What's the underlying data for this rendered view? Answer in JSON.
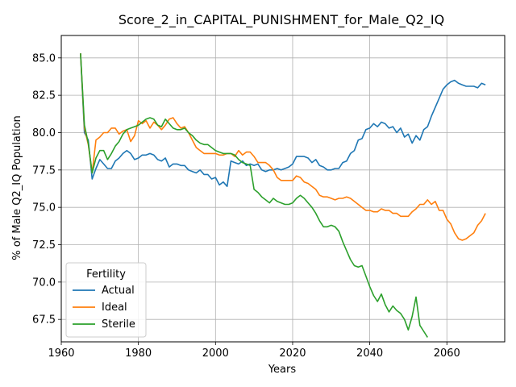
{
  "chart_data": {
    "type": "line",
    "title": "Score_2_in_CAPITAL_PUNISHMENT_for_Male_Q2_IQ",
    "xlabel": "Years",
    "ylabel": "% of Male Q2_IQ Population",
    "xlim": [
      1960,
      2075
    ],
    "ylim": [
      66.0,
      86.5
    ],
    "xticks": [
      1960,
      1980,
      2000,
      2020,
      2040,
      2060
    ],
    "xtick_labels": [
      "1960",
      "1980",
      "2000",
      "2020",
      "2040",
      "2060"
    ],
    "yticks": [
      67.5,
      70.0,
      72.5,
      75.0,
      77.5,
      80.0,
      82.5,
      85.0
    ],
    "ytick_labels": [
      "67.5",
      "70.0",
      "72.5",
      "75.0",
      "77.5",
      "80.0",
      "82.5",
      "85.0"
    ],
    "grid": true,
    "legend": {
      "title": "Fertility",
      "placement": "lower-left"
    },
    "series": [
      {
        "name": "Actual",
        "color": "#1f77b4",
        "x": [
          1965,
          1966,
          1967,
          1968,
          1969,
          1970,
          1971,
          1972,
          1973,
          1974,
          1975,
          1976,
          1977,
          1978,
          1979,
          1980,
          1981,
          1982,
          1983,
          1984,
          1985,
          1986,
          1987,
          1988,
          1989,
          1990,
          1991,
          1992,
          1993,
          1994,
          1995,
          1996,
          1997,
          1998,
          1999,
          2000,
          2001,
          2002,
          2003,
          2004,
          2005,
          2006,
          2007,
          2008,
          2009,
          2010,
          2011,
          2012,
          2013,
          2014,
          2015,
          2016,
          2017,
          2018,
          2019,
          2020,
          2021,
          2022,
          2023,
          2024,
          2025,
          2026,
          2027,
          2028,
          2029,
          2030,
          2031,
          2032,
          2033,
          2034,
          2035,
          2036,
          2037,
          2038,
          2039,
          2040,
          2041,
          2042,
          2043,
          2044,
          2045,
          2046,
          2047,
          2048,
          2049,
          2050,
          2051,
          2052,
          2053,
          2054,
          2055,
          2056,
          2057,
          2058,
          2059,
          2060,
          2061,
          2062,
          2063,
          2064,
          2065,
          2066,
          2067,
          2068,
          2069,
          2070
        ],
        "y": [
          85.3,
          80.0,
          79.5,
          76.9,
          77.6,
          78.2,
          77.9,
          77.6,
          77.6,
          78.1,
          78.3,
          78.6,
          78.8,
          78.6,
          78.2,
          78.3,
          78.5,
          78.5,
          78.6,
          78.5,
          78.2,
          78.1,
          78.3,
          77.7,
          77.9,
          77.9,
          77.8,
          77.8,
          77.5,
          77.4,
          77.3,
          77.5,
          77.2,
          77.2,
          76.9,
          77.0,
          76.5,
          76.7,
          76.4,
          78.1,
          78.0,
          77.9,
          78.1,
          77.8,
          77.9,
          77.8,
          77.9,
          77.5,
          77.4,
          77.5,
          77.5,
          77.6,
          77.5,
          77.6,
          77.7,
          77.9,
          78.4,
          78.4,
          78.4,
          78.3,
          78.0,
          78.2,
          77.8,
          77.7,
          77.5,
          77.5,
          77.6,
          77.6,
          78.0,
          78.1,
          78.6,
          78.8,
          79.5,
          79.6,
          80.2,
          80.3,
          80.6,
          80.4,
          80.7,
          80.6,
          80.3,
          80.4,
          80.0,
          80.3,
          79.7,
          79.9,
          79.3,
          79.8,
          79.5,
          80.2,
          80.4,
          81.1,
          81.7,
          82.3,
          82.9,
          83.2,
          83.4,
          83.5,
          83.3,
          83.2,
          83.1,
          83.1,
          83.1,
          83.0,
          83.3,
          83.2
        ]
      },
      {
        "name": "Ideal",
        "color": "#ff7f0e",
        "x": [
          1965,
          1966,
          1967,
          1968,
          1969,
          1970,
          1971,
          1972,
          1973,
          1974,
          1975,
          1976,
          1977,
          1978,
          1979,
          1980,
          1981,
          1982,
          1983,
          1984,
          1985,
          1986,
          1987,
          1988,
          1989,
          1990,
          1991,
          1992,
          1993,
          1994,
          1995,
          1996,
          1997,
          1998,
          1999,
          2000,
          2001,
          2002,
          2003,
          2004,
          2005,
          2006,
          2007,
          2008,
          2009,
          2010,
          2011,
          2012,
          2013,
          2014,
          2015,
          2016,
          2017,
          2018,
          2019,
          2020,
          2021,
          2022,
          2023,
          2024,
          2025,
          2026,
          2027,
          2028,
          2029,
          2030,
          2031,
          2032,
          2033,
          2034,
          2035,
          2036,
          2037,
          2038,
          2039,
          2040,
          2041,
          2042,
          2043,
          2044,
          2045,
          2046,
          2047,
          2048,
          2049,
          2050,
          2051,
          2052,
          2053,
          2054,
          2055,
          2056,
          2057,
          2058,
          2059,
          2060,
          2061,
          2062,
          2063,
          2064,
          2065,
          2066,
          2067,
          2068,
          2069,
          2070
        ],
        "y": [
          85.3,
          80.3,
          79.2,
          77.3,
          79.5,
          79.7,
          80.0,
          80.0,
          80.3,
          80.3,
          79.9,
          80.1,
          80.2,
          79.4,
          79.8,
          80.8,
          80.6,
          80.8,
          80.3,
          80.7,
          80.5,
          80.2,
          80.5,
          80.9,
          81.0,
          80.6,
          80.3,
          80.4,
          80.0,
          79.5,
          79.0,
          78.8,
          78.6,
          78.6,
          78.6,
          78.6,
          78.5,
          78.5,
          78.6,
          78.6,
          78.4,
          78.8,
          78.5,
          78.7,
          78.7,
          78.4,
          78.0,
          78.0,
          78.0,
          77.8,
          77.5,
          77.0,
          76.8,
          76.8,
          76.8,
          76.8,
          77.1,
          77.0,
          76.7,
          76.6,
          76.4,
          76.2,
          75.8,
          75.7,
          75.7,
          75.6,
          75.5,
          75.6,
          75.6,
          75.7,
          75.6,
          75.4,
          75.2,
          75.0,
          74.8,
          74.8,
          74.7,
          74.7,
          74.9,
          74.8,
          74.8,
          74.6,
          74.6,
          74.4,
          74.4,
          74.4,
          74.7,
          74.9,
          75.2,
          75.2,
          75.5,
          75.2,
          75.4,
          74.8,
          74.8,
          74.2,
          73.9,
          73.3,
          72.9,
          72.8,
          72.9,
          73.1,
          73.3,
          73.8,
          74.1,
          74.6
        ]
      },
      {
        "name": "Sterile",
        "color": "#2ca02c",
        "x": [
          1965,
          1966,
          1967,
          1968,
          1969,
          1970,
          1971,
          1972,
          1973,
          1974,
          1975,
          1976,
          1977,
          1978,
          1979,
          1980,
          1981,
          1982,
          1983,
          1984,
          1985,
          1986,
          1987,
          1988,
          1989,
          1990,
          1991,
          1992,
          1993,
          1994,
          1995,
          1996,
          1997,
          1998,
          1999,
          2000,
          2001,
          2002,
          2003,
          2004,
          2005,
          2006,
          2007,
          2008,
          2009,
          2010,
          2011,
          2012,
          2013,
          2014,
          2015,
          2016,
          2017,
          2018,
          2019,
          2020,
          2021,
          2022,
          2023,
          2024,
          2025,
          2026,
          2027,
          2028,
          2029,
          2030,
          2031,
          2032,
          2033,
          2034,
          2035,
          2036,
          2037,
          2038,
          2039,
          2040,
          2041,
          2042,
          2043,
          2044,
          2045,
          2046,
          2047,
          2048,
          2049,
          2050,
          2051,
          2052,
          2053,
          2054,
          2055
        ],
        "y": [
          85.3,
          80.5,
          79.3,
          77.3,
          78.3,
          78.8,
          78.8,
          78.2,
          78.6,
          79.1,
          79.4,
          79.9,
          80.2,
          80.3,
          80.4,
          80.5,
          80.7,
          80.9,
          81.0,
          80.9,
          80.5,
          80.4,
          80.9,
          80.6,
          80.3,
          80.2,
          80.2,
          80.3,
          80.0,
          79.8,
          79.5,
          79.3,
          79.2,
          79.2,
          79.0,
          78.8,
          78.7,
          78.6,
          78.6,
          78.6,
          78.5,
          78.2,
          78.0,
          77.9,
          77.8,
          76.2,
          76.0,
          75.7,
          75.5,
          75.3,
          75.6,
          75.4,
          75.3,
          75.2,
          75.2,
          75.3,
          75.6,
          75.8,
          75.6,
          75.3,
          75.0,
          74.6,
          74.1,
          73.7,
          73.7,
          73.8,
          73.7,
          73.4,
          72.7,
          72.1,
          71.5,
          71.1,
          71.0,
          71.1,
          70.4,
          69.7,
          69.1,
          68.7,
          69.2,
          68.5,
          68.0,
          68.4,
          68.1,
          67.9,
          67.5,
          66.8,
          67.7,
          69.0,
          67.1,
          66.7,
          66.3
        ]
      }
    ]
  }
}
